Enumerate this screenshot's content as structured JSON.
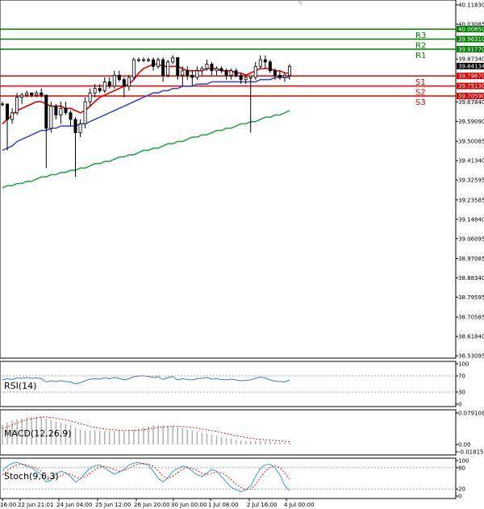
{
  "chart_data": [
    {
      "type": "candlestick",
      "title": "",
      "ylim": [
        38.53095,
        40.1183
      ],
      "y_ticks": [
        "40.11830",
        "40.03085",
        "39.87340",
        "39.67840",
        "39.59090",
        "39.50085",
        "39.41340",
        "39.32595",
        "39.23585",
        "39.14840",
        "39.06095",
        "38.97085",
        "38.88340",
        "38.79595",
        "38.70585",
        "38.61840",
        "38.53095"
      ],
      "x_ticks": [
        "16:00",
        "22 Jun 21:01",
        "24 Jun 04:00",
        "25 Jun 12:00",
        "26 Jun 20:00",
        "30 Jun 00:00",
        "1 Jul 08:00",
        "2 Jul 16:00",
        "4 Jul 00:00"
      ],
      "levels": [
        {
          "name": "R3",
          "value": 40.0085,
          "color": "#008000"
        },
        {
          "name": "R2",
          "value": 39.9631,
          "color": "#008000"
        },
        {
          "name": "R1",
          "value": 39.9177,
          "color": "#008000"
        },
        {
          "name": "S1",
          "value": 39.7967,
          "color": "#e00000"
        },
        {
          "name": "S2",
          "value": 39.7513,
          "color": "#e00000"
        },
        {
          "name": "S3",
          "value": 39.7059,
          "color": "#e00000"
        }
      ],
      "current_price": {
        "label": "39.84134",
        "value": 39.84134
      },
      "candles": [
        [
          39.67,
          39.68,
          39.66,
          39.67
        ],
        [
          39.67,
          39.67,
          39.46,
          39.6
        ],
        [
          39.6,
          39.65,
          39.58,
          39.63
        ],
        [
          39.63,
          39.72,
          39.62,
          39.7
        ],
        [
          39.7,
          39.72,
          39.67,
          39.71
        ],
        [
          39.71,
          39.73,
          39.7,
          39.72
        ],
        [
          39.72,
          39.72,
          39.7,
          39.71
        ],
        [
          39.71,
          39.73,
          39.7,
          39.72
        ],
        [
          39.72,
          39.74,
          39.7,
          39.71
        ],
        [
          39.71,
          39.71,
          39.38,
          39.56
        ],
        [
          39.56,
          39.68,
          39.54,
          39.66
        ],
        [
          39.66,
          39.67,
          39.6,
          39.62
        ],
        [
          39.62,
          39.68,
          39.58,
          39.65
        ],
        [
          39.65,
          39.68,
          39.62,
          39.63
        ],
        [
          39.63,
          39.64,
          39.57,
          39.6
        ],
        [
          39.6,
          39.61,
          39.34,
          39.54
        ],
        [
          39.54,
          39.6,
          39.52,
          39.58
        ],
        [
          39.58,
          39.7,
          39.56,
          39.68
        ],
        [
          39.68,
          39.74,
          39.66,
          39.72
        ],
        [
          39.72,
          39.76,
          39.7,
          39.74
        ],
        [
          39.74,
          39.76,
          39.72,
          39.73
        ],
        [
          39.73,
          39.79,
          39.72,
          39.77
        ],
        [
          39.77,
          39.79,
          39.74,
          39.75
        ],
        [
          39.75,
          39.82,
          39.74,
          39.8
        ],
        [
          39.8,
          39.82,
          39.77,
          39.78
        ],
        [
          39.78,
          39.79,
          39.7,
          39.75
        ],
        [
          39.75,
          39.8,
          39.73,
          39.79
        ],
        [
          39.79,
          39.88,
          39.78,
          39.87
        ],
        [
          39.87,
          39.88,
          39.86,
          39.87
        ],
        [
          39.87,
          39.88,
          39.86,
          39.87
        ],
        [
          39.87,
          39.88,
          39.86,
          39.87
        ],
        [
          39.87,
          39.88,
          39.82,
          39.84
        ],
        [
          39.84,
          39.88,
          39.83,
          39.87
        ],
        [
          39.87,
          39.88,
          39.77,
          39.8
        ],
        [
          39.8,
          39.87,
          39.79,
          39.86
        ],
        [
          39.86,
          39.89,
          39.85,
          39.88
        ],
        [
          39.88,
          39.88,
          39.78,
          39.8
        ],
        [
          39.8,
          39.84,
          39.75,
          39.82
        ],
        [
          39.82,
          39.84,
          39.78,
          39.8
        ],
        [
          39.8,
          39.82,
          39.75,
          39.79
        ],
        [
          39.79,
          39.84,
          39.78,
          39.82
        ],
        [
          39.82,
          39.84,
          39.8,
          39.83
        ],
        [
          39.83,
          39.87,
          39.82,
          39.85
        ],
        [
          39.85,
          39.86,
          39.8,
          39.82
        ],
        [
          39.82,
          39.84,
          39.8,
          39.83
        ],
        [
          39.83,
          39.84,
          39.81,
          39.82
        ],
        [
          39.82,
          39.83,
          39.78,
          39.8
        ],
        [
          39.8,
          39.83,
          39.78,
          39.82
        ],
        [
          39.82,
          39.83,
          39.79,
          39.8
        ],
        [
          39.8,
          39.81,
          39.76,
          39.78
        ],
        [
          39.78,
          39.8,
          39.76,
          39.79
        ],
        [
          39.79,
          39.79,
          39.54,
          39.79
        ],
        [
          39.79,
          39.86,
          39.78,
          39.84
        ],
        [
          39.84,
          39.89,
          39.83,
          39.87
        ],
        [
          39.87,
          39.89,
          39.83,
          39.86
        ],
        [
          39.86,
          39.87,
          39.81,
          39.82
        ],
        [
          39.82,
          39.83,
          39.78,
          39.8
        ],
        [
          39.8,
          39.82,
          39.78,
          39.79
        ],
        [
          39.79,
          39.81,
          39.77,
          39.8
        ],
        [
          39.8,
          39.85,
          39.78,
          39.84
        ]
      ],
      "series": [
        {
          "color": "#e00000",
          "values": [
            39.58,
            39.6,
            39.62,
            39.64,
            39.65,
            39.66,
            39.67,
            39.68,
            39.68,
            39.67,
            39.66,
            39.66,
            39.66,
            39.65,
            39.65,
            39.64,
            39.63,
            39.64,
            39.66,
            39.68,
            39.7,
            39.71,
            39.72,
            39.73,
            39.74,
            39.75,
            39.76,
            39.78,
            39.81,
            39.83,
            39.84,
            39.85,
            39.85,
            39.84,
            39.84,
            39.84,
            39.84,
            39.83,
            39.82,
            39.82,
            39.82,
            39.82,
            39.83,
            39.83,
            39.83,
            39.82,
            39.82,
            39.82,
            39.81,
            39.81,
            39.8,
            39.81,
            39.82,
            39.83,
            39.83,
            39.83,
            39.82,
            39.82,
            39.81,
            39.81
          ]
        },
        {
          "color": "#3b4fbf",
          "values": [
            39.46,
            39.47,
            39.48,
            39.5,
            39.51,
            39.52,
            39.53,
            39.54,
            39.55,
            39.55,
            39.56,
            39.56,
            39.57,
            39.57,
            39.57,
            39.57,
            39.58,
            39.58,
            39.59,
            39.6,
            39.61,
            39.62,
            39.63,
            39.64,
            39.65,
            39.66,
            39.67,
            39.68,
            39.69,
            39.7,
            39.71,
            39.72,
            39.72,
            39.73,
            39.73,
            39.74,
            39.74,
            39.75,
            39.75,
            39.75,
            39.76,
            39.76,
            39.76,
            39.77,
            39.77,
            39.77,
            39.77,
            39.77,
            39.77,
            39.77,
            39.77,
            39.77,
            39.77,
            39.78,
            39.78,
            39.78,
            39.79,
            39.79,
            39.79,
            39.79
          ]
        },
        {
          "color": "#2ea24f",
          "values": [
            39.29,
            39.3,
            39.3,
            39.31,
            39.31,
            39.32,
            39.32,
            39.33,
            39.34,
            39.34,
            39.35,
            39.35,
            39.36,
            39.36,
            39.37,
            39.37,
            39.38,
            39.38,
            39.39,
            39.4,
            39.4,
            39.41,
            39.41,
            39.42,
            39.43,
            39.43,
            39.44,
            39.44,
            39.45,
            39.46,
            39.46,
            39.47,
            39.47,
            39.48,
            39.49,
            39.49,
            39.5,
            39.5,
            39.51,
            39.52,
            39.52,
            39.53,
            39.53,
            39.54,
            39.55,
            39.55,
            39.56,
            39.56,
            39.57,
            39.58,
            39.58,
            39.59,
            39.59,
            39.6,
            39.61,
            39.61,
            39.62,
            39.62,
            39.63,
            39.64
          ]
        }
      ]
    },
    {
      "type": "line",
      "name": "RSI(14)",
      "ylim": [
        0,
        100
      ],
      "y_ticks": [
        "100",
        "70",
        "30",
        "0"
      ],
      "series": [
        {
          "color": "#3c7bd6",
          "values": [
            60,
            63,
            61,
            65,
            64,
            66,
            64,
            65,
            63,
            55,
            58,
            56,
            58,
            56,
            55,
            50,
            53,
            58,
            62,
            63,
            62,
            65,
            63,
            66,
            64,
            60,
            63,
            68,
            70,
            70,
            69,
            66,
            68,
            61,
            66,
            68,
            60,
            63,
            61,
            60,
            63,
            64,
            66,
            62,
            63,
            61,
            60,
            62,
            60,
            58,
            59,
            60,
            64,
            67,
            65,
            60,
            57,
            56,
            55,
            60
          ]
        }
      ]
    },
    {
      "type": "bar",
      "name": "MACD(12,26,9)",
      "ylim": [
        -0.018159,
        0.079108
      ],
      "y_ticks": [
        "0.079108",
        "0.00",
        "-0.018159"
      ],
      "values": [
        0.05,
        0.055,
        0.06,
        0.064,
        0.066,
        0.068,
        0.069,
        0.07,
        0.07,
        0.066,
        0.062,
        0.058,
        0.055,
        0.052,
        0.048,
        0.043,
        0.038,
        0.036,
        0.035,
        0.035,
        0.034,
        0.034,
        0.033,
        0.034,
        0.034,
        0.034,
        0.035,
        0.037,
        0.04,
        0.043,
        0.046,
        0.048,
        0.049,
        0.048,
        0.047,
        0.046,
        0.044,
        0.041,
        0.038,
        0.035,
        0.032,
        0.03,
        0.028,
        0.025,
        0.022,
        0.019,
        0.016,
        0.014,
        0.012,
        0.01,
        0.009,
        0.008,
        0.008,
        0.009,
        0.009,
        0.008,
        0.007,
        0.006,
        0.005,
        0.005
      ],
      "signal": [
        0.04,
        0.044,
        0.049,
        0.054,
        0.058,
        0.062,
        0.065,
        0.067,
        0.069,
        0.069,
        0.068,
        0.066,
        0.064,
        0.062,
        0.059,
        0.056,
        0.052,
        0.049,
        0.046,
        0.043,
        0.041,
        0.039,
        0.038,
        0.037,
        0.036,
        0.035,
        0.035,
        0.035,
        0.036,
        0.037,
        0.039,
        0.041,
        0.043,
        0.044,
        0.045,
        0.046,
        0.046,
        0.045,
        0.044,
        0.043,
        0.041,
        0.039,
        0.037,
        0.035,
        0.033,
        0.03,
        0.027,
        0.025,
        0.022,
        0.02,
        0.018,
        0.016,
        0.014,
        0.013,
        0.012,
        0.011,
        0.01,
        0.009,
        0.008,
        0.007
      ]
    },
    {
      "type": "line",
      "name": "Stoch(9,6,3)",
      "ylim": [
        0,
        100
      ],
      "y_ticks": [
        "100",
        "80",
        "20",
        "0"
      ],
      "series": [
        {
          "color": "#3aa5b8",
          "values": [
            70,
            85,
            92,
            95,
            90,
            84,
            80,
            70,
            60,
            40,
            45,
            62,
            70,
            66,
            55,
            40,
            48,
            65,
            78,
            86,
            88,
            80,
            70,
            62,
            68,
            75,
            88,
            93,
            95,
            90,
            88,
            70,
            50,
            40,
            52,
            70,
            78,
            84,
            82,
            70,
            60,
            55,
            64,
            75,
            70,
            55,
            40,
            25,
            18,
            12,
            18,
            28,
            55,
            78,
            88,
            90,
            80,
            60,
            30,
            15
          ]
        },
        {
          "color": "#e02020",
          "values": [
            60,
            72,
            82,
            88,
            90,
            88,
            84,
            78,
            70,
            58,
            50,
            52,
            58,
            64,
            62,
            54,
            50,
            54,
            64,
            74,
            82,
            84,
            80,
            74,
            70,
            72,
            78,
            86,
            90,
            92,
            90,
            84,
            72,
            56,
            50,
            56,
            66,
            76,
            80,
            78,
            72,
            64,
            60,
            64,
            68,
            66,
            58,
            46,
            34,
            24,
            18,
            20,
            32,
            52,
            70,
            82,
            86,
            80,
            66,
            48
          ]
        }
      ]
    }
  ]
}
